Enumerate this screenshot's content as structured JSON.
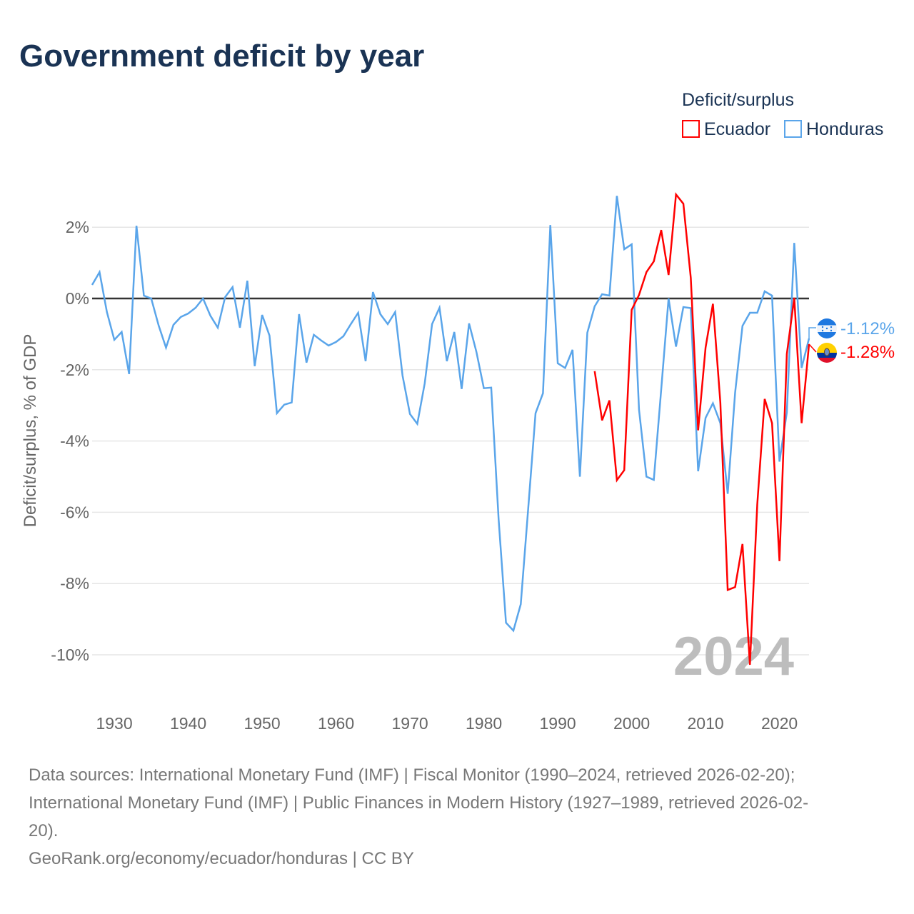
{
  "title": "Government deficit by year",
  "legend": {
    "title": "Deficit/surplus",
    "items": [
      {
        "label": "Ecuador",
        "color": "#ff0000"
      },
      {
        "label": "Honduras",
        "color": "#5aa5ea"
      }
    ]
  },
  "watermark_year": "2024",
  "footer": {
    "line1": "Data sources: International Monetary Fund (IMF) | Fiscal Monitor (1990–2024, retrieved 2026-02-20);",
    "line2": "International Monetary Fund (IMF) | Public Finances in Modern History (1927–1989, retrieved 2026-02-",
    "line3": "20).",
    "line4": "GeoRank.org/economy/ecuador/honduras | CC BY"
  },
  "chart_data": {
    "type": "line",
    "title": "Government deficit by year",
    "xlabel": "",
    "ylabel": "Deficit/surplus, % of GDP",
    "xlim": [
      1927,
      2024
    ],
    "ylim": [
      -11,
      3.5
    ],
    "xticks": [
      1930,
      1940,
      1950,
      1960,
      1970,
      1980,
      1990,
      2000,
      2010,
      2020
    ],
    "xtick_labels": [
      "1930",
      "1940",
      "1950",
      "1960",
      "1970",
      "1980",
      "1990",
      "2000",
      "2010",
      "2020"
    ],
    "yticks": [
      2,
      0,
      -2,
      -4,
      -6,
      -8,
      -10
    ],
    "ytick_labels": [
      "2%",
      "0%",
      "-2%",
      "-4%",
      "-6%",
      "-8%",
      "-10%"
    ],
    "grid": true,
    "legend_position": "top-right",
    "series": [
      {
        "name": "Honduras",
        "color": "#5aa5ea",
        "end_label": "-1.12%",
        "start_year": 1927,
        "values": [
          0.38,
          0.74,
          -0.38,
          -1.16,
          -0.94,
          -2.12,
          2.04,
          0.08,
          0.0,
          -0.76,
          -1.38,
          -0.74,
          -0.52,
          -0.42,
          -0.26,
          0.0,
          -0.48,
          -0.82,
          0.04,
          0.32,
          -0.82,
          0.5,
          -1.9,
          -0.46,
          -1.04,
          -3.22,
          -2.98,
          -2.92,
          -0.44,
          -1.8,
          -1.02,
          -1.18,
          -1.32,
          -1.22,
          -1.06,
          -0.72,
          -0.4,
          -1.76,
          0.18,
          -0.44,
          -0.72,
          -0.38,
          -2.16,
          -3.24,
          -3.52,
          -2.38,
          -0.72,
          -0.26,
          -1.76,
          -0.94,
          -2.54,
          -0.7,
          -1.5,
          -2.52,
          -2.5,
          -6.2,
          -9.1,
          -9.32,
          -8.58,
          -5.9,
          -3.22,
          -2.66,
          2.06,
          -1.82,
          -1.95,
          -1.44,
          -5.0,
          -0.96,
          -0.22,
          0.12,
          0.08,
          2.88,
          1.38,
          1.52,
          -3.12,
          -5.0,
          -5.09,
          -2.55,
          0.0,
          -1.35,
          -0.24,
          -0.27,
          -4.85,
          -3.35,
          -2.94,
          -3.5,
          -5.48,
          -2.64,
          -0.77,
          -0.4,
          -0.4,
          0.2,
          0.08,
          -4.58,
          -3.2,
          1.56,
          -1.95,
          -1.12
        ]
      },
      {
        "name": "Ecuador",
        "color": "#ff0000",
        "end_label": "-1.28%",
        "start_year": 1995,
        "values": [
          -2.04,
          -3.42,
          -2.86,
          -5.1,
          -4.82,
          -0.32,
          0.1,
          0.74,
          1.04,
          1.92,
          0.66,
          2.92,
          2.66,
          0.58,
          -3.7,
          -1.38,
          -0.15,
          -2.92,
          -8.18,
          -8.1,
          -6.89,
          -10.28,
          -5.78,
          -2.82,
          -3.5,
          -7.37,
          -1.56,
          0.02,
          -3.5,
          -1.28
        ]
      }
    ]
  }
}
